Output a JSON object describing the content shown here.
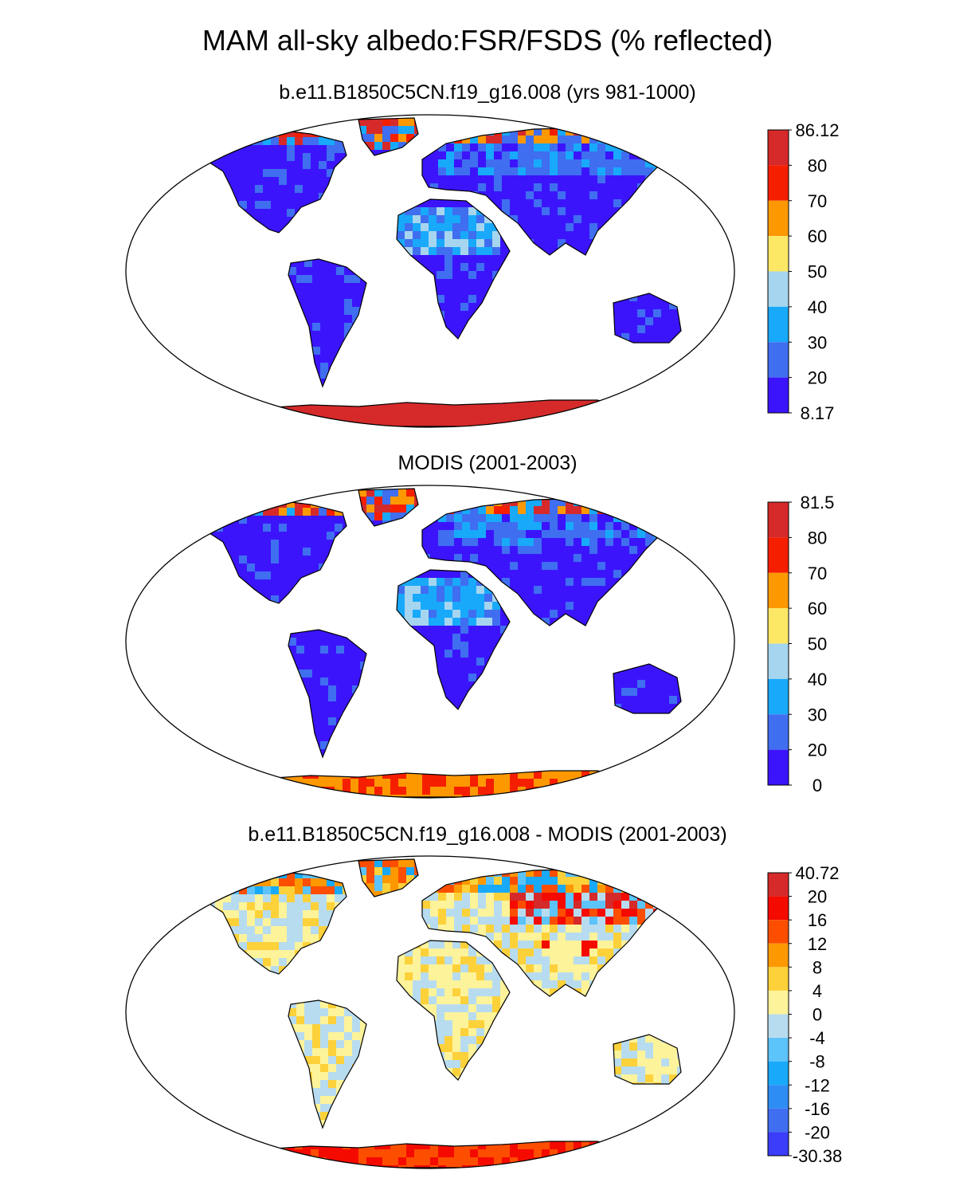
{
  "title": "MAM all-sky albedo:FSR/FSDS (% reflected)",
  "panels": [
    {
      "title": "b.e11.B1850C5CN.f19_g16.008 (yrs 981-1000)",
      "colorbar": {
        "labels": [
          "86.12",
          "80",
          "70",
          "60",
          "50",
          "40",
          "30",
          "20",
          "8.17"
        ],
        "colors": [
          "#d62a2a",
          "#f51f00",
          "#fd9800",
          "#fde866",
          "#a6d5ef",
          "#18a9fb",
          "#3f6ef0",
          "#3c14fc"
        ]
      }
    },
    {
      "title": "MODIS (2001-2003)",
      "colorbar": {
        "labels": [
          "81.5",
          "80",
          "70",
          "60",
          "50",
          "40",
          "30",
          "20",
          "0"
        ],
        "colors": [
          "#d62a2a",
          "#f51f00",
          "#fd9800",
          "#fde866",
          "#a6d5ef",
          "#18a9fb",
          "#3f6ef0",
          "#3c14fc"
        ]
      }
    },
    {
      "title": "b.e11.B1850C5CN.f19_g16.008 - MODIS (2001-2003)",
      "colorbar": {
        "labels": [
          "40.72",
          "20",
          "16",
          "12",
          "8",
          "4",
          "0",
          "-4",
          "-8",
          "-12",
          "-16",
          "-20",
          "-30.38"
        ],
        "colors": [
          "#d62a2a",
          "#f50a00",
          "#fd4e00",
          "#fd9800",
          "#fdd13a",
          "#fdf39a",
          "#b8dcef",
          "#5cc3fb",
          "#18a9fb",
          "#2d8df5",
          "#3f6ef0",
          "#3b3dfa"
        ]
      }
    }
  ]
}
